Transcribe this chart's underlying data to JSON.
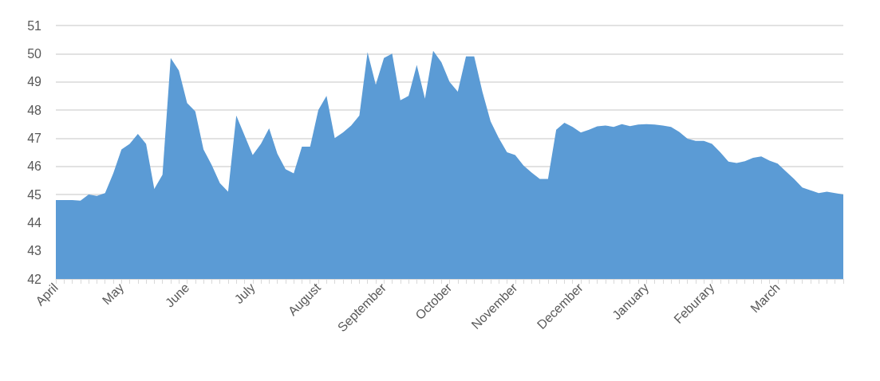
{
  "chart_data": {
    "type": "area",
    "color": "#5b9bd5",
    "categories": [
      "April",
      null,
      null,
      null,
      null,
      null,
      null,
      null,
      "May",
      null,
      null,
      null,
      null,
      null,
      null,
      null,
      "June",
      null,
      null,
      null,
      null,
      null,
      null,
      null,
      "July",
      null,
      null,
      null,
      null,
      null,
      null,
      null,
      "August",
      null,
      null,
      null,
      null,
      null,
      null,
      null,
      "September",
      null,
      null,
      null,
      null,
      null,
      null,
      null,
      "October",
      null,
      null,
      null,
      null,
      null,
      null,
      null,
      "November",
      null,
      null,
      null,
      null,
      null,
      null,
      null,
      "December",
      null,
      null,
      null,
      null,
      null,
      null,
      null,
      "January",
      null,
      null,
      null,
      null,
      null,
      null,
      null,
      "Feburary",
      null,
      null,
      null,
      null,
      null,
      null,
      null,
      "March",
      null,
      null,
      null,
      null,
      null,
      null,
      null,
      null
    ],
    "values": [
      44.8,
      44.8,
      44.8,
      44.78,
      45.0,
      44.95,
      45.05,
      45.75,
      46.6,
      46.8,
      47.15,
      46.8,
      45.2,
      45.7,
      49.85,
      49.4,
      48.25,
      47.95,
      46.6,
      46.05,
      45.4,
      45.1,
      47.8,
      47.1,
      46.4,
      46.8,
      47.35,
      46.45,
      45.9,
      45.75,
      46.7,
      46.7,
      48.0,
      48.5,
      47.0,
      47.2,
      47.45,
      47.8,
      50.05,
      48.9,
      49.85,
      50.0,
      48.35,
      48.5,
      49.6,
      48.4,
      50.1,
      49.7,
      49.0,
      48.65,
      49.9,
      49.9,
      48.65,
      47.6,
      47.0,
      46.5,
      46.4,
      46.03,
      45.78,
      45.55,
      45.55,
      47.3,
      47.55,
      47.4,
      47.2,
      47.3,
      47.42,
      47.45,
      47.4,
      47.5,
      47.43,
      47.48,
      47.5,
      47.48,
      47.45,
      47.4,
      47.22,
      46.98,
      46.9,
      46.9,
      46.8,
      46.5,
      46.17,
      46.12,
      46.18,
      46.3,
      46.35,
      46.2,
      46.1,
      45.82,
      45.55,
      45.25,
      45.15,
      45.05,
      45.1,
      45.05,
      45.0
    ],
    "ylim": [
      42,
      51
    ],
    "yticks": [
      42,
      43,
      44,
      45,
      46,
      47,
      48,
      49,
      50,
      51
    ],
    "grid": "y"
  }
}
